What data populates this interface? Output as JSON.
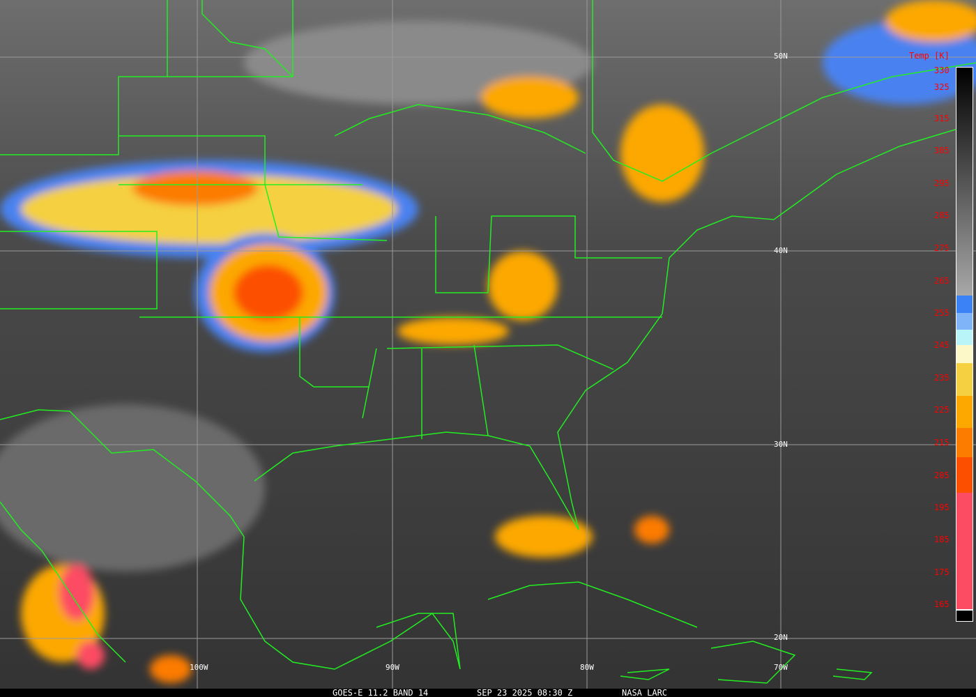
{
  "caption": {
    "satellite": "GOES-E 11.2 BAND 14",
    "datetime": "SEP 23 2025 08:30 Z",
    "source": "NASA LARC"
  },
  "legend": {
    "title": "Temp [K]",
    "ticks": [
      "330",
      "325",
      "315",
      "305",
      "295",
      "285",
      "275",
      "265",
      "255",
      "245",
      "235",
      "225",
      "215",
      "205",
      "195",
      "185",
      "175",
      "165"
    ],
    "colors": {
      "warm_top": "#000000",
      "warm_bottom": "#a8a8a8",
      "blue": "#3b82f6",
      "light_blue": "#7fb4f8",
      "cyan": "#b8f4f8",
      "pale_yellow": "#fdf8c8",
      "yellow": "#f5d040",
      "orange": "#fca800",
      "dark_orange": "#fc7c00",
      "red_orange": "#fc5000",
      "pink": "#fc4c64"
    }
  },
  "grid": {
    "lat_labels": [
      "50N",
      "40N",
      "30N",
      "20N"
    ],
    "lon_labels": [
      "100W",
      "90W",
      "80W",
      "70W"
    ]
  },
  "overlay_color": "#22ee22"
}
